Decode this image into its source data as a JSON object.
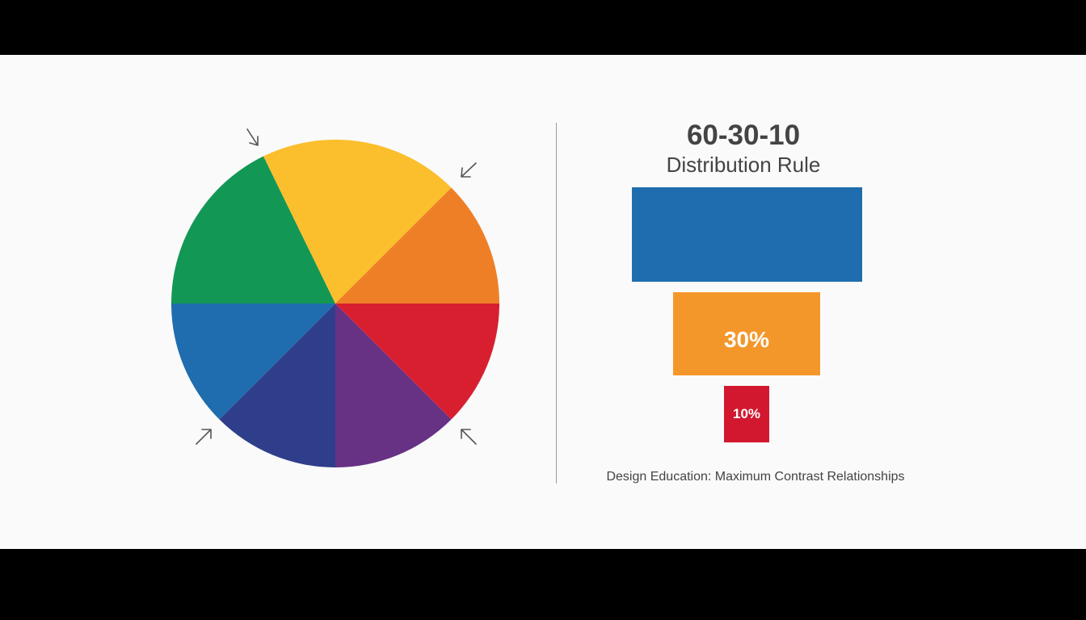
{
  "wheel": {
    "segments": [
      {
        "color": "#D71F30"
      },
      {
        "color": "#673184"
      },
      {
        "color": "#2F3E8A"
      },
      {
        "color": "#1F6DAE"
      },
      {
        "color": "#139755"
      },
      {
        "color": "#FBBF2D"
      },
      {
        "color": "#EF7F27"
      }
    ],
    "arrow_icons": [
      "arrow-down-right",
      "arrow-down-left",
      "arrow-up-right",
      "arrow-up-left"
    ]
  },
  "panel": {
    "title": "60-30-10",
    "subtitle": "Distribution Rule",
    "bars": [
      {
        "value": 60,
        "label": "",
        "color": "#1F6DAE"
      },
      {
        "value": 30,
        "label": "30%",
        "color": "#F4972A"
      },
      {
        "value": 10,
        "label": "10%",
        "color": "#D2182F"
      }
    ],
    "caption": "Design Education: Maximum Contrast Relationships"
  }
}
